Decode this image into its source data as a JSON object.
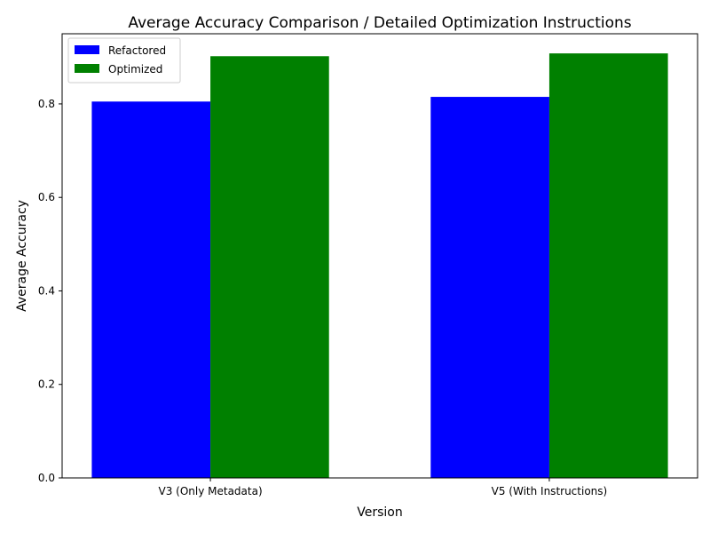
{
  "chart_data": {
    "type": "bar",
    "title": "Average Accuracy Comparison / Detailed Optimization Instructions",
    "xlabel": "Version",
    "ylabel": "Average Accuracy",
    "categories": [
      "V3 (Only Metadata)",
      "V5 (With Instructions)"
    ],
    "series": [
      {
        "name": "Refactored",
        "color": "#0000ff",
        "values": [
          0.805,
          0.815
        ]
      },
      {
        "name": "Optimized",
        "color": "#008000",
        "values": [
          0.902,
          0.908
        ]
      }
    ],
    "ylim": [
      0,
      0.95
    ],
    "yticks": [
      0.0,
      0.2,
      0.4,
      0.6,
      0.8
    ],
    "grid": false,
    "legend_position": "top-left"
  }
}
